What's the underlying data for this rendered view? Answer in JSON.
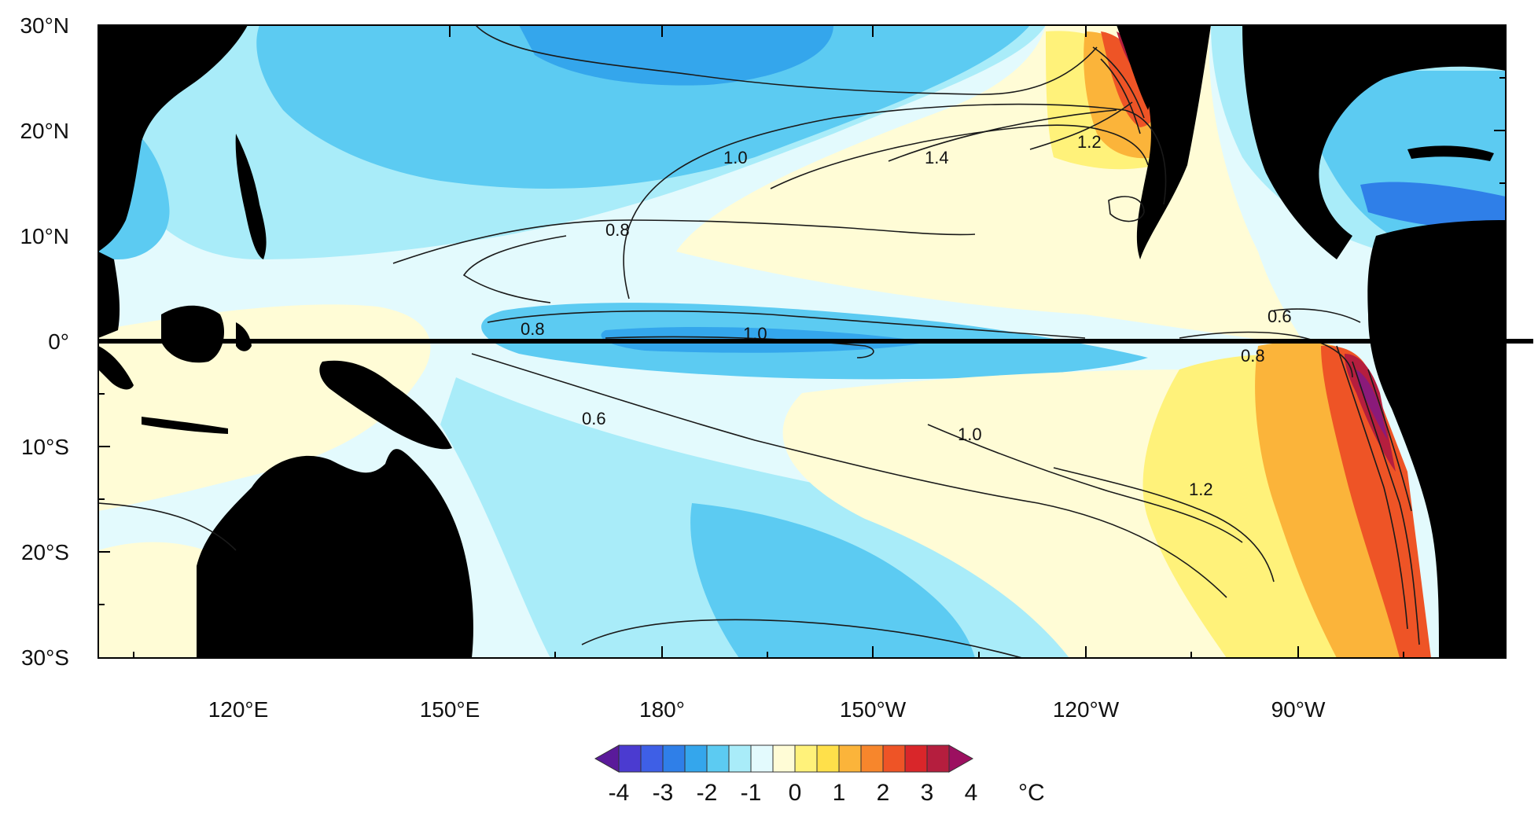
{
  "map": {
    "lat_labels": [
      "30°N",
      "20°N",
      "10°N",
      "0°",
      "10°S",
      "20°S",
      "30°S"
    ],
    "lon_labels": [
      "120°E",
      "150°E",
      "180°",
      "150°W",
      "120°W",
      "90°W"
    ],
    "contour_labels": [
      "1.4",
      "1.2",
      "1.0",
      "0.8",
      "0.8",
      "1.0",
      "0.6",
      "0.8",
      "0.6",
      "1.0",
      "1.2"
    ]
  },
  "colorbar": {
    "tick_labels": [
      "-4",
      "-3",
      "-2",
      "-1",
      "0",
      "1",
      "2",
      "3",
      "4"
    ],
    "unit": "°C",
    "colors": [
      "#5a1a9a",
      "#4b3bd0",
      "#3e5fe6",
      "#2f7fe8",
      "#34a6ec",
      "#5ccbf2",
      "#a9ecf9",
      "#e3fafd",
      "#fffcd6",
      "#fff27a",
      "#ffe04a",
      "#fbb43a",
      "#f7862c",
      "#ee5426",
      "#d9262a",
      "#b51e3e",
      "#9c1060"
    ]
  },
  "colors": {
    "land": "#000000",
    "contour": "#1a1a1a",
    "equator": "#000000"
  }
}
